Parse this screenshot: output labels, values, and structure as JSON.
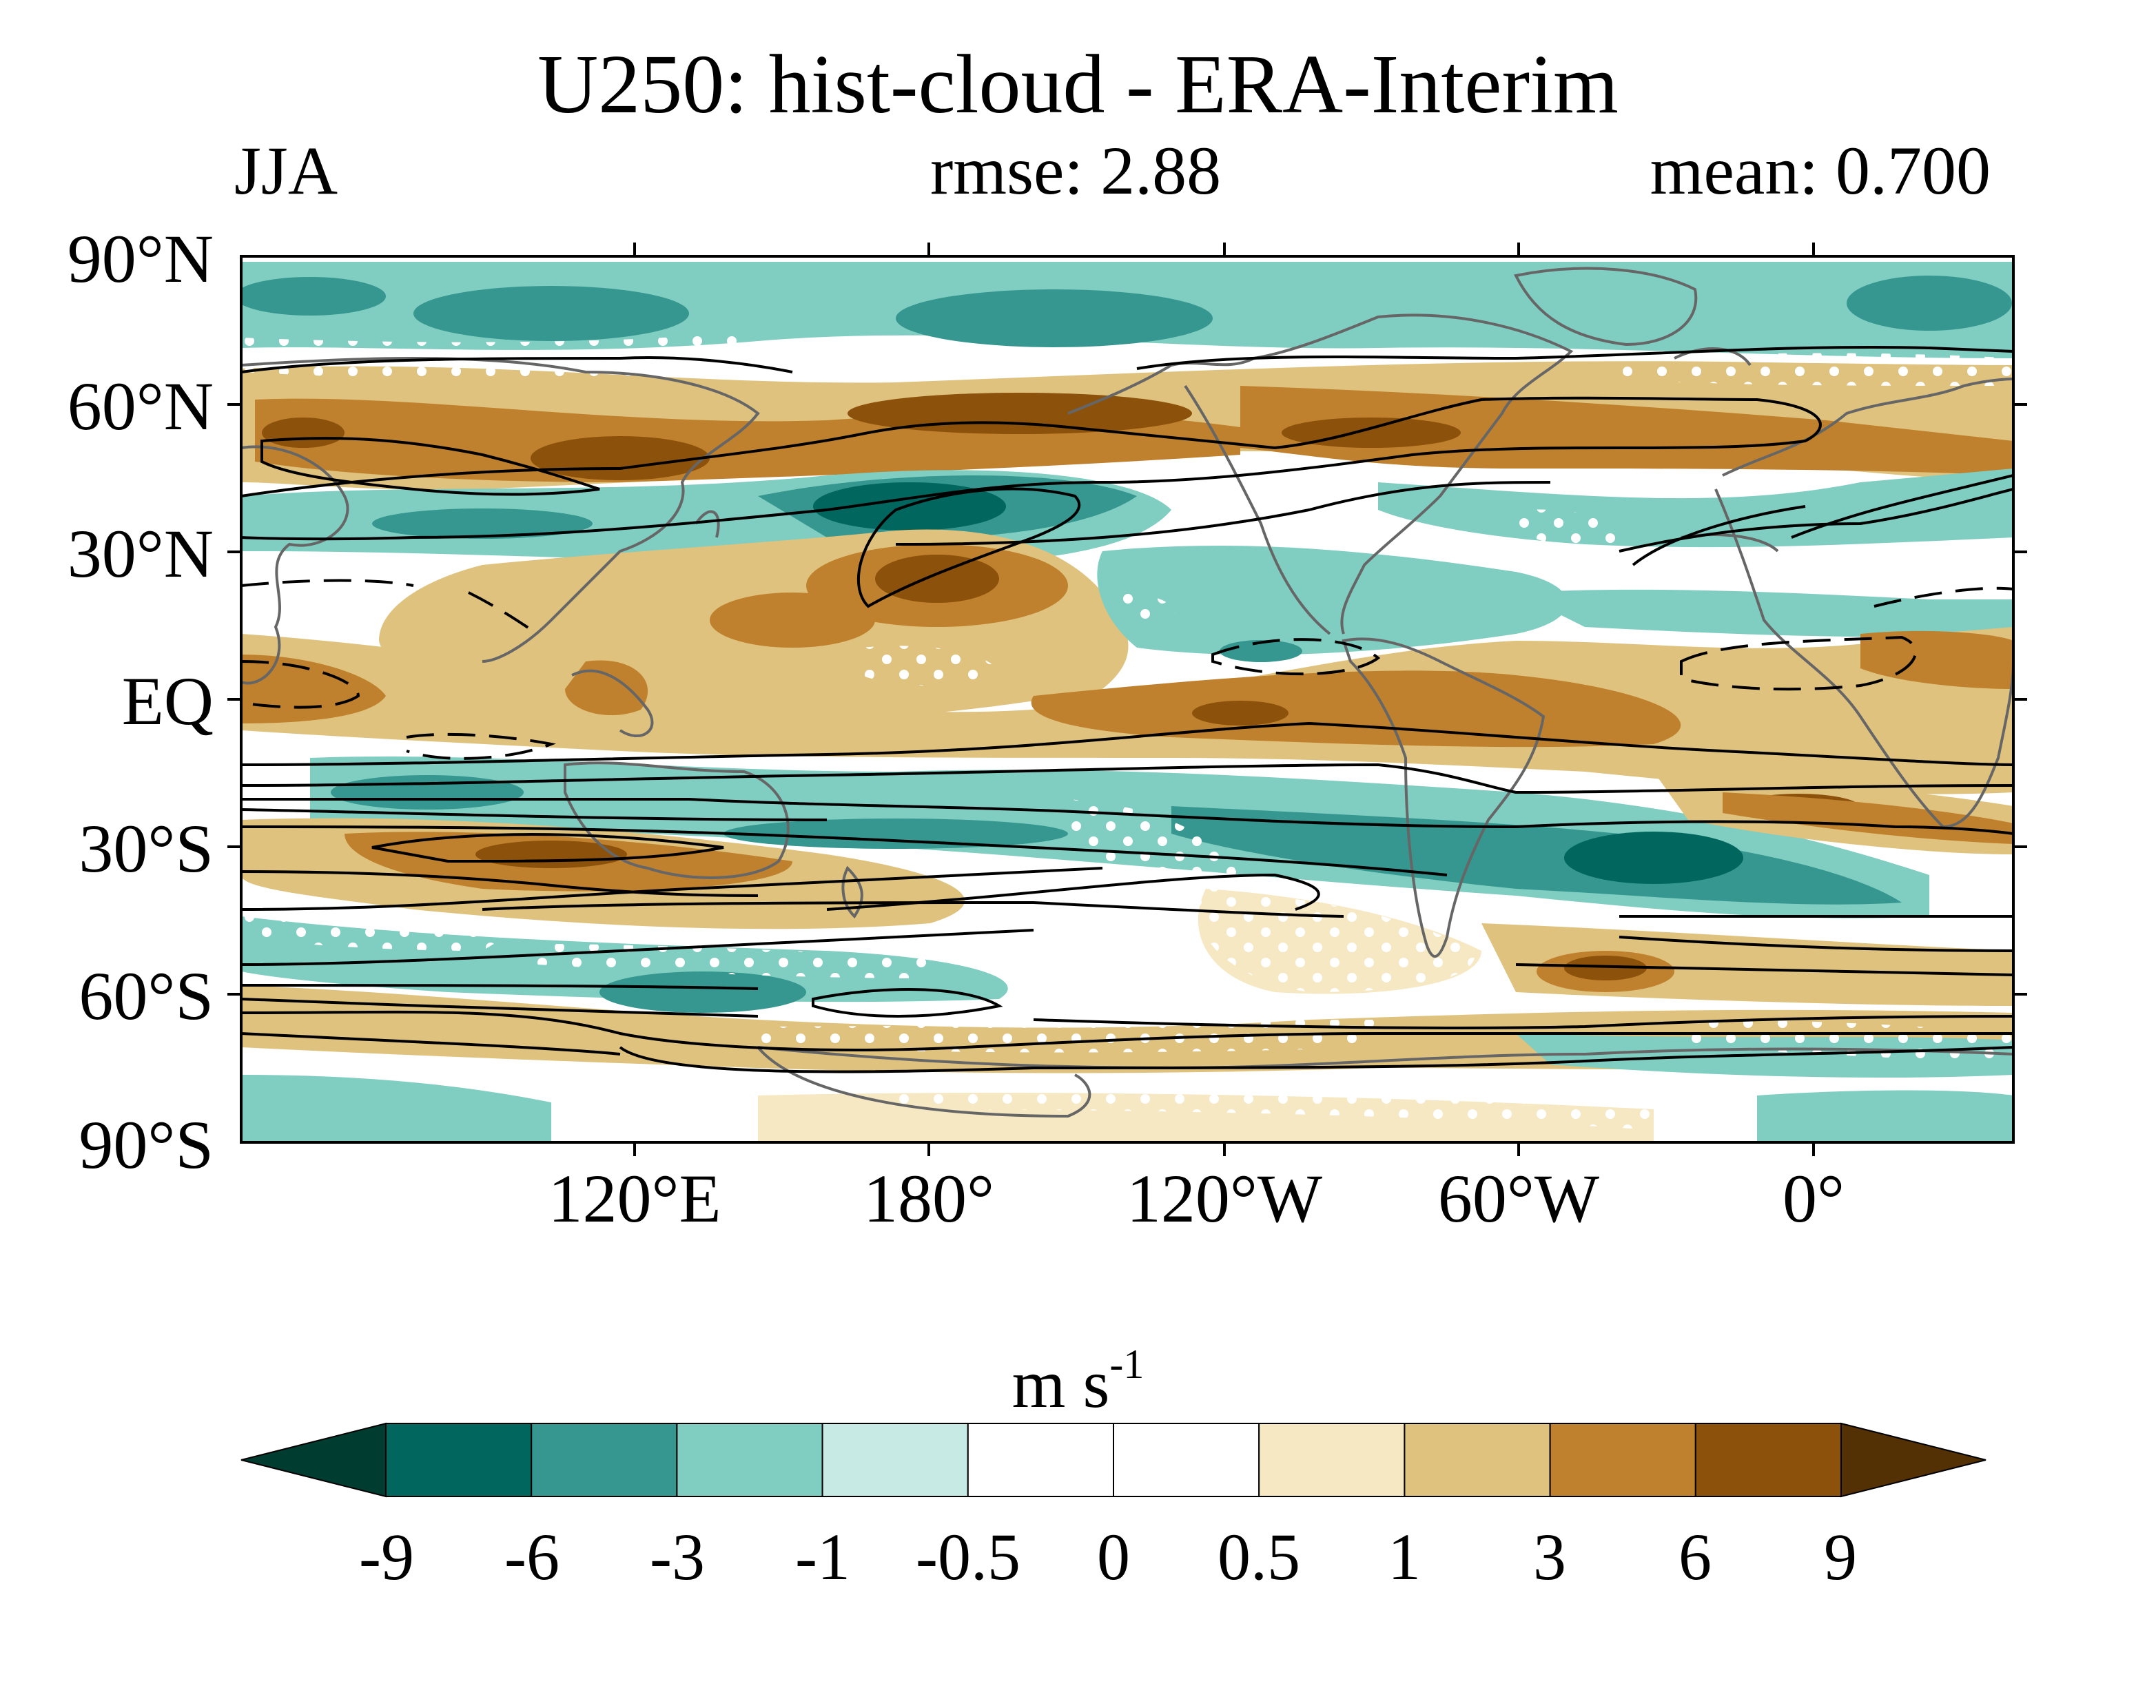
{
  "title": "U250: hist-cloud - ERA-Interim",
  "season": "JJA",
  "rmse": "rmse: 2.88",
  "mean": "mean: 0.700",
  "lat_labels": [
    "90°N",
    "60°N",
    "30°N",
    "EQ",
    "30°S",
    "60°S",
    "90°S"
  ],
  "lon_labels": [
    "120°E",
    "180°",
    "120°W",
    "60°W",
    "0°"
  ],
  "colorbar": {
    "units": "m s",
    "units_exp": "-1",
    "levels": [
      "-9",
      "-6",
      "-3",
      "-1",
      "-0.5",
      "0",
      "0.5",
      "1",
      "3",
      "6",
      "9"
    ],
    "colors": [
      "#003c30",
      "#01665e",
      "#35978f",
      "#80cdc1",
      "#c7eae5",
      "#ffffff",
      "#ffffff",
      "#f6e8c3",
      "#dfc27d",
      "#bf812d",
      "#8c510a",
      "#543005"
    ]
  }
}
